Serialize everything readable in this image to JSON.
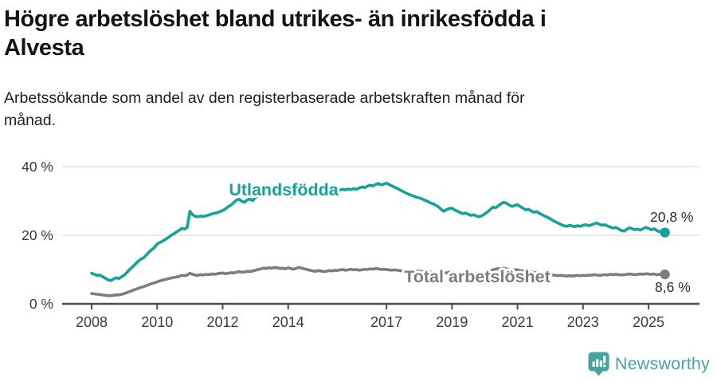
{
  "header": {
    "title_line1": "Högre arbetslöshet bland utrikes- än inrikesfödda i",
    "title_line2": "Alvesta",
    "subtitle_line1": "Arbetssökande som andel av den registerbaserade arbetskraften månad för",
    "subtitle_line2": "månad."
  },
  "chart_data": {
    "type": "line",
    "unit": "%",
    "x_start": "2008-01",
    "x_end": "2025-07",
    "x_interval": "monthly",
    "x_tick_labels": [
      "2008",
      "2010",
      "2012",
      "2014",
      "2017",
      "2019",
      "2021",
      "2023",
      "2025"
    ],
    "x_tick_years": [
      2008,
      2010,
      2012,
      2014,
      2017,
      2019,
      2021,
      2023,
      2025
    ],
    "y_ticks": [
      {
        "value": 0,
        "label": "0 %"
      },
      {
        "value": 20,
        "label": "20 %"
      },
      {
        "value": 40,
        "label": "40 %"
      }
    ],
    "ylim": [
      0,
      42
    ],
    "grid": "horizontal",
    "legend_position": "inline-labels",
    "colors": {
      "axis": "#4d4d4d",
      "gridline": "#e3e3e3",
      "tick_text": "#3a3a3a",
      "end_label_text": "#2b2b2b"
    },
    "series": [
      {
        "name": "Utlandsfödda",
        "color": "#14a299",
        "end_value": 20.8,
        "end_label": "20,8 %",
        "values": [
          8.9,
          8.6,
          8.3,
          8.4,
          7.9,
          7.5,
          7.0,
          6.8,
          7.2,
          7.6,
          7.4,
          7.9,
          8.4,
          9.2,
          10.1,
          10.8,
          11.6,
          12.4,
          13.0,
          13.4,
          14.2,
          15.1,
          15.8,
          16.4,
          17.5,
          17.9,
          18.3,
          18.8,
          19.3,
          19.9,
          20.4,
          20.9,
          21.4,
          22.0,
          21.8,
          22.3,
          27.0,
          26.0,
          25.5,
          25.4,
          25.6,
          25.5,
          25.7,
          25.9,
          26.2,
          26.4,
          26.6,
          26.9,
          27.2,
          27.7,
          28.3,
          28.8,
          29.5,
          30.2,
          30.5,
          29.9,
          29.6,
          30.3,
          30.6,
          30.1,
          31.0,
          31.6,
          32.1,
          32.4,
          31.9,
          31.5,
          31.9,
          32.3,
          32.1,
          31.8,
          32.0,
          31.7,
          31.9,
          31.4,
          31.6,
          32.0,
          32.3,
          32.1,
          32.4,
          32.7,
          32.5,
          32.8,
          32.6,
          32.9,
          32.7,
          33.0,
          32.8,
          33.1,
          33.3,
          33.0,
          32.8,
          33.2,
          33.4,
          33.2,
          33.5,
          33.3,
          33.6,
          33.4,
          33.8,
          34.1,
          33.9,
          34.3,
          34.6,
          34.4,
          34.8,
          35.1,
          34.7,
          34.9,
          35.2,
          34.8,
          34.4,
          34.0,
          33.6,
          33.2,
          32.8,
          32.4,
          32.0,
          31.7,
          31.4,
          31.1,
          30.9,
          30.6,
          30.2,
          29.9,
          29.5,
          29.2,
          28.8,
          28.3,
          27.6,
          27.0,
          27.5,
          27.8,
          27.9,
          27.4,
          27.0,
          26.6,
          26.3,
          26.5,
          26.1,
          25.8,
          26.0,
          25.6,
          25.4,
          25.7,
          26.2,
          26.8,
          27.5,
          28.2,
          28.0,
          28.6,
          29.2,
          29.6,
          29.3,
          28.8,
          28.4,
          28.7,
          28.9,
          28.4,
          27.9,
          27.4,
          27.6,
          27.1,
          26.7,
          26.9,
          26.4,
          26.0,
          25.6,
          25.2,
          24.8,
          24.3,
          23.9,
          23.5,
          23.1,
          22.8,
          22.6,
          22.9,
          22.7,
          22.5,
          22.8,
          22.6,
          22.9,
          23.1,
          22.8,
          23.0,
          23.3,
          23.6,
          23.2,
          22.9,
          23.1,
          22.7,
          22.4,
          22.1,
          22.3,
          21.9,
          21.4,
          21.2,
          21.7,
          22.2,
          21.9,
          21.6,
          21.8,
          21.5,
          21.9,
          22.3,
          22.0,
          21.6,
          21.9,
          21.4,
          21.0,
          21.3,
          20.8
        ]
      },
      {
        "name": "Total arbetslöshet",
        "color": "#7d7d81",
        "end_value": 8.6,
        "end_label": "8,6 %",
        "values": [
          3.0,
          2.9,
          2.8,
          2.7,
          2.6,
          2.5,
          2.4,
          2.4,
          2.5,
          2.6,
          2.6,
          2.8,
          3.0,
          3.3,
          3.6,
          3.9,
          4.2,
          4.5,
          4.8,
          5.0,
          5.3,
          5.6,
          5.9,
          6.1,
          6.4,
          6.7,
          6.9,
          7.1,
          7.3,
          7.5,
          7.7,
          7.8,
          8.0,
          8.3,
          8.2,
          8.4,
          8.9,
          8.6,
          8.4,
          8.3,
          8.5,
          8.4,
          8.6,
          8.5,
          8.7,
          8.6,
          8.8,
          8.9,
          9.0,
          8.8,
          8.9,
          9.1,
          9.0,
          9.2,
          9.4,
          9.2,
          9.3,
          9.5,
          9.4,
          9.6,
          9.8,
          10.0,
          10.2,
          10.4,
          10.3,
          10.5,
          10.4,
          10.6,
          10.5,
          10.3,
          10.4,
          10.2,
          10.5,
          10.3,
          10.1,
          10.4,
          10.6,
          10.4,
          10.2,
          10.0,
          9.8,
          9.6,
          9.5,
          9.7,
          9.6,
          9.4,
          9.5,
          9.7,
          9.6,
          9.8,
          9.7,
          9.9,
          10.0,
          9.8,
          9.9,
          10.1,
          9.9,
          10.0,
          9.8,
          9.9,
          10.1,
          10.0,
          10.2,
          10.1,
          10.3,
          10.2,
          10.0,
          10.1,
          10.0,
          9.9,
          9.8,
          9.9,
          9.8,
          9.7,
          9.6,
          9.7,
          9.6,
          9.5,
          9.4,
          9.6,
          9.5,
          9.4,
          9.3,
          9.4,
          9.3,
          9.2,
          9.1,
          9.0,
          8.9,
          9.1,
          9.0,
          9.2,
          9.1,
          9.0,
          8.9,
          9.1,
          9.0,
          8.8,
          8.9,
          8.7,
          8.9,
          8.8,
          8.7,
          8.9,
          9.1,
          9.3,
          9.6,
          9.9,
          10.1,
          10.3,
          10.2,
          10.4,
          10.2,
          10.0,
          9.9,
          10.0,
          9.9,
          9.7,
          9.6,
          9.4,
          9.5,
          9.3,
          9.2,
          9.0,
          8.9,
          8.8,
          8.7,
          8.6,
          8.5,
          8.4,
          8.3,
          8.2,
          8.3,
          8.2,
          8.1,
          8.2,
          8.1,
          8.2,
          8.3,
          8.2,
          8.3,
          8.2,
          8.4,
          8.3,
          8.5,
          8.4,
          8.3,
          8.4,
          8.5,
          8.4,
          8.6,
          8.5,
          8.6,
          8.5,
          8.4,
          8.5,
          8.6,
          8.7,
          8.6,
          8.5,
          8.6,
          8.7,
          8.6,
          8.8,
          8.7,
          8.6,
          8.7,
          8.5,
          8.6,
          8.7,
          8.6
        ]
      }
    ]
  },
  "footer": {
    "brand": "Newsworthy",
    "brand_color": "#4aa29e",
    "logo_icon": "bar-chart-speech-bubble"
  }
}
